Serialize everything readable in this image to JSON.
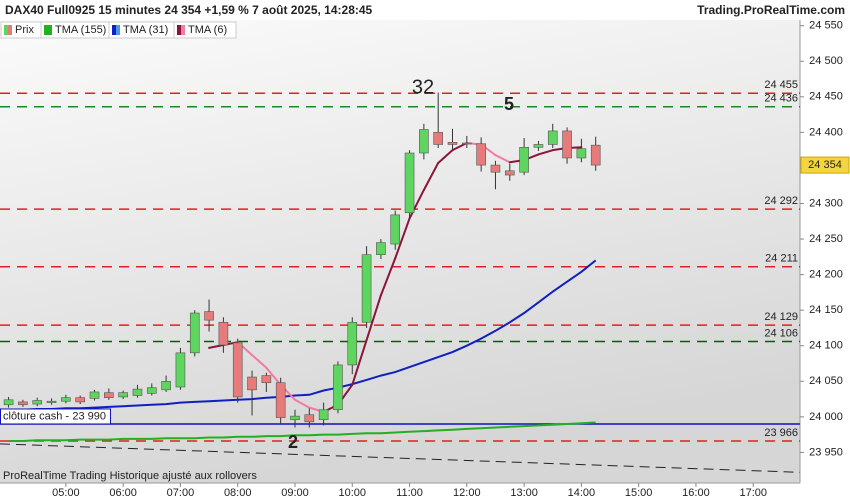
{
  "chart_data": {
    "type": "candlestick",
    "title": "DAX40 Full0925 15 minutes 24 354 +1,59 % 7 août 2025, 14:28:45",
    "source": "Trading.ProRealTime.com",
    "footer": "ProRealTime Trading  Historique ajusté aux rollovers",
    "price_name": "Prix",
    "up_color": "#5ed55e",
    "down_color": "#e77b7b",
    "x": [
      "04:00",
      "04:15",
      "04:30",
      "04:45",
      "05:00",
      "05:15",
      "05:30",
      "05:45",
      "06:00",
      "06:15",
      "06:30",
      "06:45",
      "07:00",
      "07:15",
      "07:30",
      "07:45",
      "08:00",
      "08:15",
      "08:30",
      "08:45",
      "09:00",
      "09:15",
      "09:30",
      "09:45",
      "10:00",
      "10:15",
      "10:30",
      "10:45",
      "11:00",
      "11:15",
      "11:30",
      "11:45",
      "12:00",
      "12:15",
      "12:30",
      "12:45",
      "13:00",
      "13:15",
      "13:30",
      "13:45",
      "14:00",
      "14:15"
    ],
    "open": [
      24017,
      24021,
      24018,
      24020,
      24022,
      24027,
      24026,
      24034,
      24028,
      24030,
      24033,
      24038,
      24042,
      24090,
      24148,
      24133,
      24104,
      24056,
      24058,
      24048,
      23996,
      24003,
      23996,
      24010,
      24073,
      24133,
      24228,
      24243,
      24287,
      24371,
      24400,
      24386,
      24385,
      24384,
      24354,
      24346,
      24344,
      24379,
      24383,
      24402,
      24364,
      24382
    ],
    "high": [
      24028,
      24024,
      24027,
      24026,
      24031,
      24030,
      24038,
      24040,
      24037,
      24045,
      24047,
      24058,
      24097,
      24150,
      24165,
      24140,
      24110,
      24065,
      24062,
      24055,
      24010,
      24012,
      24020,
      24078,
      24140,
      24240,
      24250,
      24290,
      24375,
      24412,
      24456,
      24405,
      24395,
      24393,
      24360,
      24356,
      24392,
      24388,
      24412,
      24407,
      24391,
      24394
    ],
    "low": [
      24013,
      24014,
      24015,
      24017,
      24019,
      24018,
      24023,
      24024,
      24025,
      24027,
      24030,
      24035,
      24038,
      24085,
      24120,
      24090,
      24020,
      24002,
      24035,
      23990,
      23985,
      23985,
      23988,
      24005,
      24060,
      24125,
      24222,
      24235,
      24280,
      24362,
      24378,
      24376,
      24378,
      24345,
      24320,
      24332,
      24340,
      24374,
      24378,
      24356,
      24358,
      24346
    ],
    "close": [
      24024,
      24017,
      24023,
      24022,
      24027,
      24021,
      24035,
      24027,
      24034,
      24039,
      24041,
      24050,
      24090,
      24146,
      24136,
      24101,
      24028,
      24038,
      24048,
      23999,
      24001,
      23993,
      24010,
      24073,
      24133,
      24228,
      24245,
      24284,
      24371,
      24404,
      24383,
      24383,
      24384,
      24354,
      24344,
      24340,
      24379,
      24383,
      24402,
      24364,
      24377,
      24354
    ],
    "last_price_label": "24 354",
    "series": [
      {
        "name": "TMA (155)",
        "color": "#22b022",
        "values": [
          23966,
          23966,
          23967,
          23967,
          23967,
          23968,
          23968,
          23968,
          23969,
          23969,
          23969,
          23970,
          23970,
          23970,
          23971,
          23971,
          23972,
          23972,
          23973,
          23973,
          23974,
          23974,
          23975,
          23975,
          23976,
          23977,
          23977,
          23978,
          23979,
          23980,
          23981,
          23982,
          23983,
          23984,
          23985,
          23986,
          23987,
          23988,
          23989,
          23990,
          23991,
          23992
        ]
      },
      {
        "name": "TMA (31)",
        "color": "#1020c0",
        "values": [
          24010,
          24010,
          24011,
          24011,
          24012,
          24012,
          24013,
          24014,
          24015,
          24016,
          24017,
          24018,
          24020,
          24021,
          24022,
          24023,
          24024,
          24025,
          24027,
          24028,
          24030,
          24031,
          24037,
          24041,
          24046,
          24052,
          24058,
          24063,
          24070,
          24077,
          24084,
          24091,
          24100,
          24110,
          24121,
          24133,
          24146,
          24161,
          24176,
          24190,
          24204,
          24220
        ]
      },
      {
        "name": "TMA (6)",
        "color": "#8b1538",
        "down_color": "#f07ca0",
        "values": [
          null,
          null,
          null,
          null,
          null,
          null,
          null,
          null,
          null,
          null,
          null,
          null,
          null,
          null,
          24097,
          24101,
          24105,
          24087,
          24069,
          24045,
          24024,
          24013,
          24007,
          24017,
          24045,
          24108,
          24171,
          24223,
          24279,
          24319,
          24357,
          24375,
          24385,
          24383,
          24368,
          24358,
          24361,
          24369,
          24375,
          24378,
          24379,
          null
        ]
      }
    ],
    "levels": [
      {
        "value": 24455,
        "label": "24 455",
        "color": "#e02020"
      },
      {
        "value": 24436,
        "label": "24 436",
        "color": "#1a8a1a"
      },
      {
        "value": 24292,
        "label": "24 292",
        "color": "#e02020"
      },
      {
        "value": 24211,
        "label": "24 211",
        "color": "#e02020"
      },
      {
        "value": 24129,
        "label": "24 129",
        "color": "#e02020"
      },
      {
        "value": 24106,
        "label": "24 106",
        "color": "#0a5a0a"
      },
      {
        "value": 23966,
        "label": "23 966",
        "color": "#e02020"
      }
    ],
    "cash_close": {
      "label": "clôture cash -",
      "value": 23990,
      "value_label": "23 990",
      "color": "#1010c0"
    },
    "trendline": {
      "x": [
        "03:51",
        "17:49"
      ],
      "values": [
        23962,
        23922
      ],
      "color": "#222222"
    },
    "annotations": [
      {
        "text": "32",
        "color": "#e53935"
      },
      {
        "text": "5",
        "color": "#1a7a1a"
      },
      {
        "text": "2",
        "color": "#e53935"
      }
    ],
    "xlim": [
      "03:51",
      "17:49"
    ],
    "xticks": [
      "05:00",
      "06:00",
      "07:00",
      "08:00",
      "09:00",
      "10:00",
      "11:00",
      "12:00",
      "13:00",
      "14:00",
      "15:00",
      "16:00",
      "17:00"
    ],
    "ylim": [
      23907,
      24558
    ],
    "yticks": [
      {
        "value": 23950,
        "label": "23 950"
      },
      {
        "value": 24000,
        "label": "24 000"
      },
      {
        "value": 24050,
        "label": "24 050"
      },
      {
        "value": 24100,
        "label": "24 100"
      },
      {
        "value": 24150,
        "label": "24 150"
      },
      {
        "value": 24200,
        "label": "24 200"
      },
      {
        "value": 24250,
        "label": "24 250"
      },
      {
        "value": 24300,
        "label": "24 300"
      },
      {
        "value": 24350,
        "label": "24 350"
      },
      {
        "value": 24400,
        "label": "24 400"
      },
      {
        "value": 24450,
        "label": "24 450"
      },
      {
        "value": 24500,
        "label": "24 500"
      },
      {
        "value": 24550,
        "label": "24 550"
      }
    ]
  }
}
